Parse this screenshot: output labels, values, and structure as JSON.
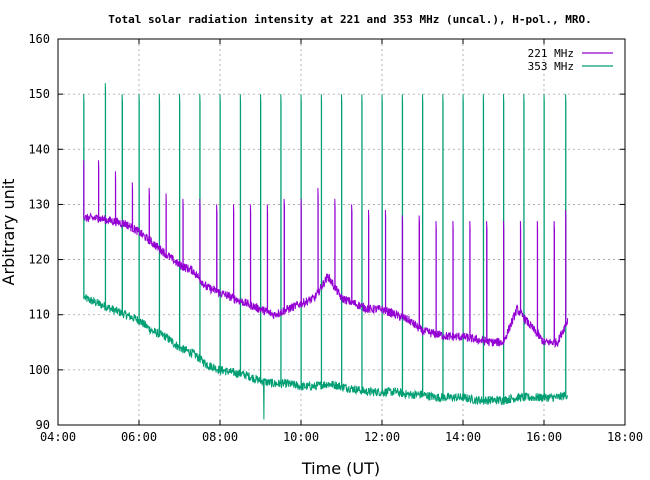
{
  "chart_data": {
    "type": "line",
    "title": "Total solar radiation intensity at 221 and 353 MHz (uncal.), H-pol., MRO.",
    "xlabel": "Time (UT)",
    "ylabel": "Arbitrary unit",
    "xlim": [
      "04:00",
      "18:00"
    ],
    "ylim": [
      90,
      160
    ],
    "xticks": [
      "04:00",
      "06:00",
      "08:00",
      "10:00",
      "12:00",
      "14:00",
      "16:00",
      "18:00"
    ],
    "yticks": [
      "90",
      "100",
      "110",
      "120",
      "130",
      "140",
      "150",
      "160"
    ],
    "grid": true,
    "legend_position": "top-right",
    "colors": {
      "221 MHz": "#9400d3",
      "353 MHz": "#009e73"
    },
    "series": [
      {
        "name": "221 MHz",
        "time": [
          "04:40",
          "05:00",
          "05:20",
          "05:40",
          "06:00",
          "06:20",
          "06:40",
          "07:00",
          "07:20",
          "07:40",
          "08:00",
          "08:20",
          "08:40",
          "09:00",
          "09:20",
          "09:40",
          "10:00",
          "10:20",
          "10:40",
          "11:00",
          "11:20",
          "11:40",
          "12:00",
          "12:20",
          "12:40",
          "13:00",
          "13:20",
          "13:40",
          "14:00",
          "14:20",
          "14:40",
          "15:00",
          "15:20",
          "15:40",
          "16:00",
          "16:20",
          "16:35"
        ],
        "values": [
          127.5,
          127.5,
          127,
          126.5,
          125,
          123,
          121,
          119,
          118,
          115,
          114,
          113,
          112,
          111,
          110,
          111,
          112,
          113,
          117,
          113,
          112,
          111,
          111,
          110,
          109,
          107,
          106.5,
          106,
          106,
          105.5,
          105,
          105,
          111,
          108,
          105,
          105,
          109
        ],
        "calibration_peaks": [
          {
            "time": "04:38",
            "value": 138
          },
          {
            "time": "05:00",
            "value": 138
          },
          {
            "time": "05:25",
            "value": 136
          },
          {
            "time": "05:50",
            "value": 134
          },
          {
            "time": "06:15",
            "value": 133
          },
          {
            "time": "06:40",
            "value": 132
          },
          {
            "time": "07:05",
            "value": 131
          },
          {
            "time": "07:30",
            "value": 131
          },
          {
            "time": "07:55",
            "value": 130
          },
          {
            "time": "08:20",
            "value": 130
          },
          {
            "time": "08:45",
            "value": 130
          },
          {
            "time": "09:10",
            "value": 130
          },
          {
            "time": "09:35",
            "value": 131
          },
          {
            "time": "10:00",
            "value": 131
          },
          {
            "time": "10:25",
            "value": 133
          },
          {
            "time": "10:50",
            "value": 131
          },
          {
            "time": "11:15",
            "value": 130
          },
          {
            "time": "11:40",
            "value": 129
          },
          {
            "time": "12:05",
            "value": 129
          },
          {
            "time": "12:30",
            "value": 128
          },
          {
            "time": "12:55",
            "value": 128
          },
          {
            "time": "13:20",
            "value": 127
          },
          {
            "time": "13:45",
            "value": 127
          },
          {
            "time": "14:10",
            "value": 127
          },
          {
            "time": "14:35",
            "value": 127
          },
          {
            "time": "15:00",
            "value": 127
          },
          {
            "time": "15:25",
            "value": 127
          },
          {
            "time": "15:50",
            "value": 127
          },
          {
            "time": "16:15",
            "value": 127
          },
          {
            "time": "16:32",
            "value": 129
          }
        ]
      },
      {
        "name": "353 MHz",
        "time": [
          "04:40",
          "05:00",
          "05:20",
          "05:40",
          "06:00",
          "06:20",
          "06:40",
          "07:00",
          "07:20",
          "07:40",
          "08:00",
          "08:20",
          "08:40",
          "09:00",
          "09:20",
          "09:40",
          "10:00",
          "10:20",
          "10:40",
          "11:00",
          "11:20",
          "11:40",
          "12:00",
          "12:20",
          "12:40",
          "13:00",
          "13:20",
          "13:40",
          "14:00",
          "14:20",
          "14:40",
          "15:00",
          "15:20",
          "15:40",
          "16:00",
          "16:20",
          "16:35"
        ],
        "values": [
          113,
          112,
          111,
          110,
          109,
          107,
          106,
          104,
          103,
          101,
          100,
          99.5,
          99,
          98,
          97.5,
          97.5,
          97,
          97,
          97.5,
          97,
          96.5,
          96,
          96,
          96,
          95.5,
          95.5,
          95,
          95,
          95,
          94.5,
          94.5,
          94.5,
          95,
          95,
          95,
          95,
          95.5
        ],
        "calibration_peaks": [
          {
            "time": "04:38",
            "value": 150
          },
          {
            "time": "05:10",
            "value": 152
          },
          {
            "time": "05:35",
            "value": 150
          },
          {
            "time": "06:00",
            "value": 150
          },
          {
            "time": "06:30",
            "value": 150
          },
          {
            "time": "07:00",
            "value": 150
          },
          {
            "time": "07:30",
            "value": 150
          },
          {
            "time": "08:00",
            "value": 150
          },
          {
            "time": "08:30",
            "value": 150
          },
          {
            "time": "09:00",
            "value": 150
          },
          {
            "time": "09:30",
            "value": 150
          },
          {
            "time": "10:00",
            "value": 150
          },
          {
            "time": "10:30",
            "value": 150
          },
          {
            "time": "11:00",
            "value": 150
          },
          {
            "time": "11:30",
            "value": 150
          },
          {
            "time": "12:00",
            "value": 150
          },
          {
            "time": "12:30",
            "value": 150
          },
          {
            "time": "13:00",
            "value": 150
          },
          {
            "time": "13:30",
            "value": 150
          },
          {
            "time": "14:00",
            "value": 150
          },
          {
            "time": "14:30",
            "value": 150
          },
          {
            "time": "15:00",
            "value": 150
          },
          {
            "time": "15:30",
            "value": 150
          },
          {
            "time": "16:00",
            "value": 150
          },
          {
            "time": "16:32",
            "value": 150
          }
        ],
        "minimum": {
          "time": "09:05",
          "value": 91
        }
      }
    ]
  }
}
